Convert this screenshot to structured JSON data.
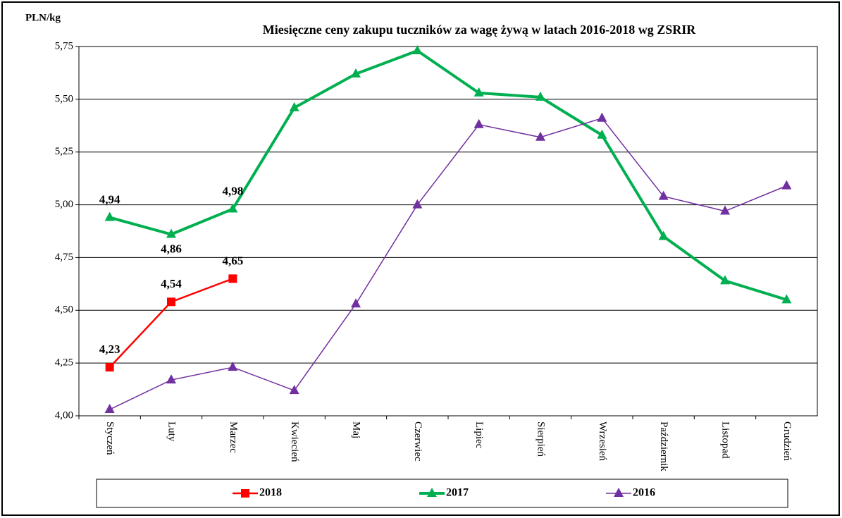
{
  "chart_data": {
    "type": "line",
    "title": "Miesięczne ceny zakupu tuczników za wagę żywą w latach 2016-2018 wg ZSRIR",
    "y_label": "PLN/kg",
    "categories": [
      "Styczeń",
      "Luty",
      "Marzec",
      "Kwiecień",
      "Maj",
      "Czerwiec",
      "Lipiec",
      "Sierpień",
      "Wrzesień",
      "Październik",
      "Listopad",
      "Grudzień"
    ],
    "series": [
      {
        "name": "2018",
        "color": "#ff0000",
        "marker": "square",
        "width": 2.5,
        "values": [
          4.23,
          4.54,
          4.65,
          null,
          null,
          null,
          null,
          null,
          null,
          null,
          null,
          null
        ],
        "value_labels": [
          "4,23",
          "4,54",
          "4,65",
          null,
          null,
          null,
          null,
          null,
          null,
          null,
          null,
          null
        ]
      },
      {
        "name": "2017",
        "color": "#00b050",
        "marker": "triangle",
        "width": 4,
        "values": [
          4.94,
          4.86,
          4.98,
          5.46,
          5.62,
          5.73,
          5.53,
          5.51,
          5.33,
          4.85,
          4.64,
          4.55
        ],
        "value_labels": [
          "4,94",
          "4,86",
          "4,98",
          null,
          null,
          null,
          null,
          null,
          null,
          null,
          null,
          null
        ]
      },
      {
        "name": "2016",
        "color": "#7030a0",
        "marker": "triangle",
        "width": 1.5,
        "values": [
          4.03,
          4.17,
          4.23,
          4.12,
          4.53,
          5.0,
          5.38,
          5.32,
          5.41,
          5.04,
          4.97,
          5.09
        ]
      }
    ],
    "ylim": [
      4.0,
      5.75
    ],
    "yticks": [
      {
        "value": 4.0,
        "label": "4,00"
      },
      {
        "value": 4.25,
        "label": "4,25"
      },
      {
        "value": 4.5,
        "label": "4,50"
      },
      {
        "value": 4.75,
        "label": "4,75"
      },
      {
        "value": 5.0,
        "label": "5,00"
      },
      {
        "value": 5.25,
        "label": "5,25"
      },
      {
        "value": 5.5,
        "label": "5,50"
      },
      {
        "value": 5.75,
        "label": "5,75"
      }
    ],
    "grid": true,
    "legend": "bottom"
  }
}
